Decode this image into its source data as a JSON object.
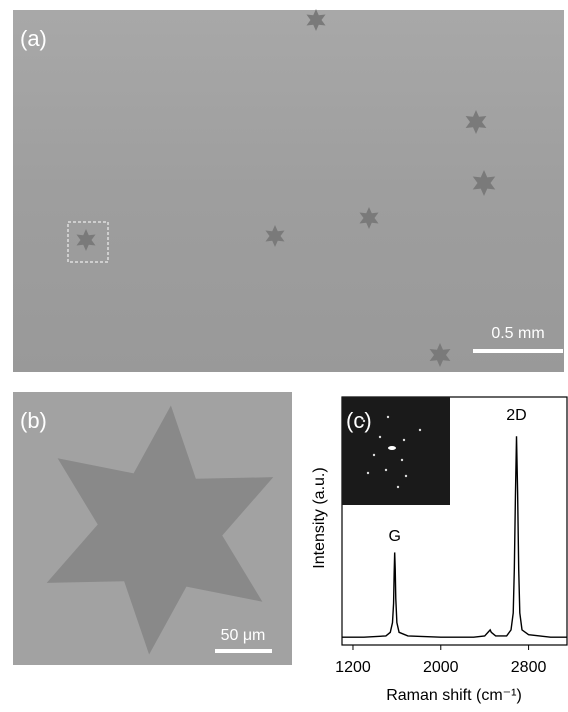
{
  "panels": [
    {
      "label": "(a)",
      "scale_bar": "0.5 mm"
    },
    {
      "label": "(b)",
      "scale_bar": "50 μm"
    }
  ],
  "chart_data": {
    "type": "line",
    "label": "(c)",
    "xlabel": "Raman shift (cm⁻¹)",
    "ylabel": "Intensity (a.u.)",
    "annotations": [
      {
        "text": "G",
        "x": 1580,
        "y": 0.4
      },
      {
        "text": "2D",
        "x": 2690,
        "y": 0.9
      }
    ],
    "color": "#000000",
    "x": [
      1100,
      1300,
      1500,
      1540,
      1560,
      1570,
      1575,
      1580,
      1585,
      1590,
      1600,
      1620,
      1700,
      2000,
      2300,
      2400,
      2440,
      2450,
      2460,
      2500,
      2600,
      2640,
      2660,
      2670,
      2680,
      2690,
      2700,
      2710,
      2720,
      2740,
      2800,
      3000,
      3150
    ],
    "values": [
      0.02,
      0.02,
      0.025,
      0.04,
      0.08,
      0.16,
      0.28,
      0.37,
      0.3,
      0.18,
      0.08,
      0.04,
      0.025,
      0.02,
      0.02,
      0.025,
      0.045,
      0.05,
      0.04,
      0.025,
      0.025,
      0.05,
      0.12,
      0.3,
      0.6,
      0.85,
      0.62,
      0.3,
      0.12,
      0.05,
      0.03,
      0.02,
      0.02
    ],
    "xlim": [
      1100,
      3150
    ],
    "ylim": [
      0,
      1
    ],
    "xticks": [
      1200,
      2000,
      2800
    ]
  }
}
